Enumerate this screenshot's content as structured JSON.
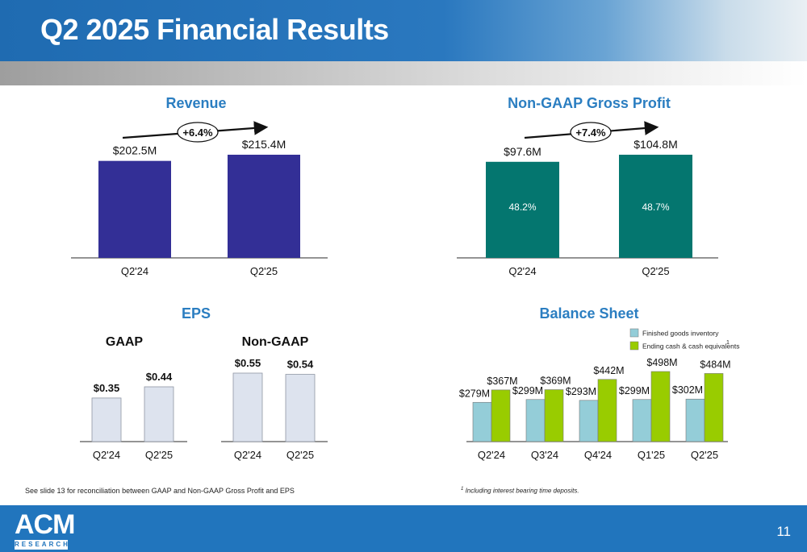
{
  "header": {
    "title": "Q2 2025 Financial Results"
  },
  "chart_data": [
    {
      "type": "bar",
      "title": "Revenue",
      "categories": [
        "Q2'24",
        "Q2'25"
      ],
      "values": [
        202.5,
        215.4
      ],
      "value_labels": [
        "$202.5M",
        "$215.4M"
      ],
      "growth_label": "+6.4%",
      "ylim": [
        0,
        215.4
      ],
      "color": "#332f96"
    },
    {
      "type": "bar",
      "title": "Non-GAAP Gross Profit",
      "categories": [
        "Q2'24",
        "Q2'25"
      ],
      "values": [
        97.6,
        104.8
      ],
      "value_labels": [
        "$97.6M",
        "$104.8M"
      ],
      "inner_labels": [
        "48.2%",
        "48.7%"
      ],
      "growth_label": "+7.4%",
      "ylim": [
        0,
        104.8
      ],
      "color": "#04766f"
    },
    {
      "type": "bar",
      "title": "EPS",
      "panels": [
        {
          "name": "GAAP",
          "categories": [
            "Q2'24",
            "Q2'25"
          ],
          "values": [
            0.35,
            0.44
          ],
          "value_labels": [
            "$0.35",
            "$0.44"
          ]
        },
        {
          "name": "Non-GAAP",
          "categories": [
            "Q2'24",
            "Q2'25"
          ],
          "values": [
            0.55,
            0.54
          ],
          "value_labels": [
            "$0.55",
            "$0.54"
          ]
        }
      ],
      "ylim": [
        0,
        0.55
      ],
      "color": "#dde3ee"
    },
    {
      "type": "bar",
      "title": "Balance Sheet",
      "categories": [
        "Q2'24",
        "Q3'24",
        "Q4'24",
        "Q1'25",
        "Q2'25"
      ],
      "series": [
        {
          "name": "Finished goods inventory",
          "values": [
            279,
            299,
            293,
            299,
            302
          ],
          "value_labels": [
            "$279M",
            "$299M",
            "$293M",
            "$299M",
            "$302M"
          ],
          "color": "#94cdd8"
        },
        {
          "name": "Ending cash & cash equivalents",
          "name_superscript": "1",
          "values": [
            367,
            369,
            442,
            498,
            484
          ],
          "value_labels": [
            "$367M",
            "$369M",
            "$442M",
            "$498M",
            "$484M"
          ],
          "color": "#99cc00"
        }
      ],
      "legend": "top-right",
      "ylim": [
        0,
        498
      ]
    }
  ],
  "notes": {
    "left": "See slide 13 for reconciliation between GAAP and Non-GAAP Gross Profit and EPS",
    "right_marker": "1",
    "right": "Including interest bearing time deposits."
  },
  "footer": {
    "logo_main": "ACM",
    "logo_sub": "RESEARCH",
    "page_number": "11"
  }
}
